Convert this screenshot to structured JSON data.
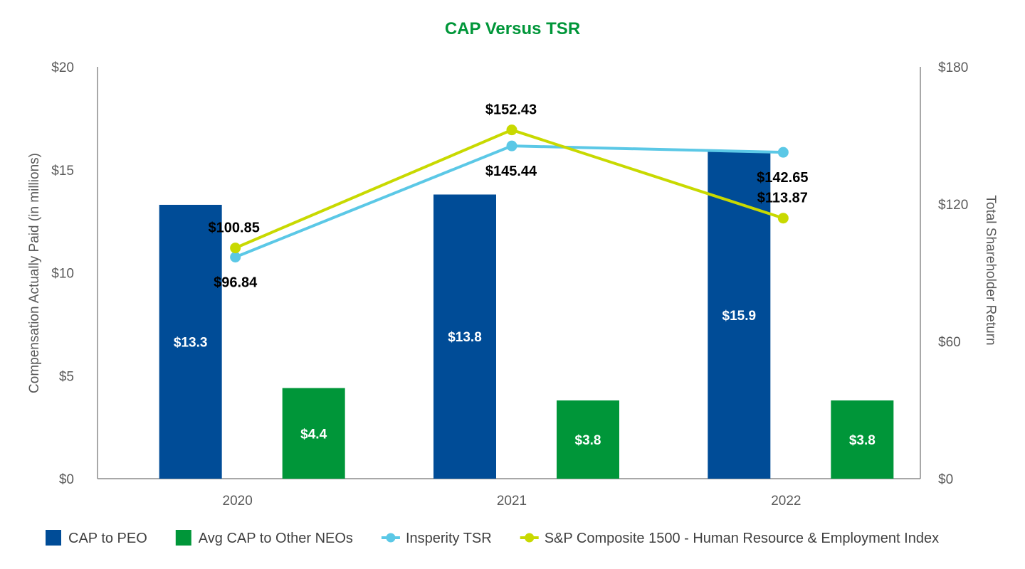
{
  "chart_data": {
    "type": "bar",
    "title": "CAP Versus TSR",
    "categories": [
      "2020",
      "2021",
      "2022"
    ],
    "ylabel": "Compensation Actually Paid (in millions)",
    "y2label": "Total Shareholder Return",
    "ylim": [
      0,
      20
    ],
    "y2lim": [
      0,
      180
    ],
    "yticks": [
      "$0",
      "$5",
      "$10",
      "$15",
      "$20"
    ],
    "y2ticks": [
      "$0",
      "$60",
      "$120",
      "$180"
    ],
    "bar_series": [
      {
        "name": "CAP to PEO",
        "color": "#004C97",
        "values": [
          13.3,
          13.8,
          15.9
        ],
        "labels": [
          "$13.3",
          "$13.8",
          "$15.9"
        ]
      },
      {
        "name": "Avg CAP to Other NEOs",
        "color": "#009639",
        "values": [
          4.4,
          3.8,
          3.8
        ],
        "labels": [
          "$4.4",
          "$3.8",
          "$3.8"
        ]
      }
    ],
    "line_series": [
      {
        "name": "Insperity TSR",
        "color": "#5BC8E6",
        "values": [
          96.84,
          145.44,
          142.65
        ],
        "labels": [
          "$96.84",
          "$145.44",
          "$142.65"
        ]
      },
      {
        "name": "S&P Composite 1500 - Human Resource & Employment Index",
        "color": "#C8D900",
        "values": [
          100.85,
          152.43,
          113.87
        ],
        "labels": [
          "$100.85",
          "$152.43",
          "$113.87"
        ]
      }
    ],
    "legend_position": "bottom"
  }
}
